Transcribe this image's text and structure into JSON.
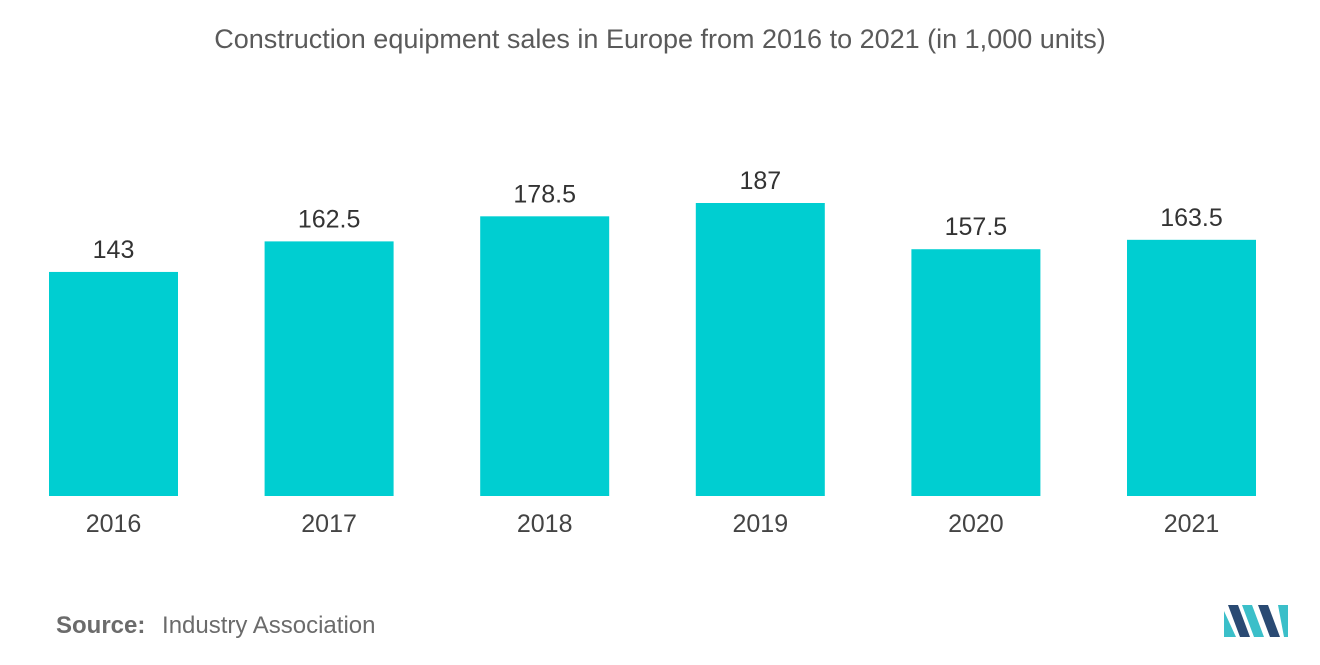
{
  "chart_data": {
    "type": "bar",
    "title": "Construction equipment sales in Europe from 2016 to 2021 (in 1,000 units)",
    "categories": [
      "2016",
      "2017",
      "2018",
      "2019",
      "2020",
      "2021"
    ],
    "values": [
      143,
      162.5,
      178.5,
      187,
      157.5,
      163.5
    ],
    "value_labels": [
      "143",
      "162.5",
      "178.5",
      "187",
      "157.5",
      "163.5"
    ],
    "xlabel": "",
    "ylabel": "",
    "ylim": [
      0,
      187
    ],
    "grid": false,
    "bar_color": "#00CED1"
  },
  "source": {
    "label": "Source:",
    "text": "Industry Association"
  },
  "logo": {
    "icon": "mordor-intelligence-logo-icon",
    "colors": [
      "#2a4a73",
      "#3bbfc9"
    ]
  }
}
